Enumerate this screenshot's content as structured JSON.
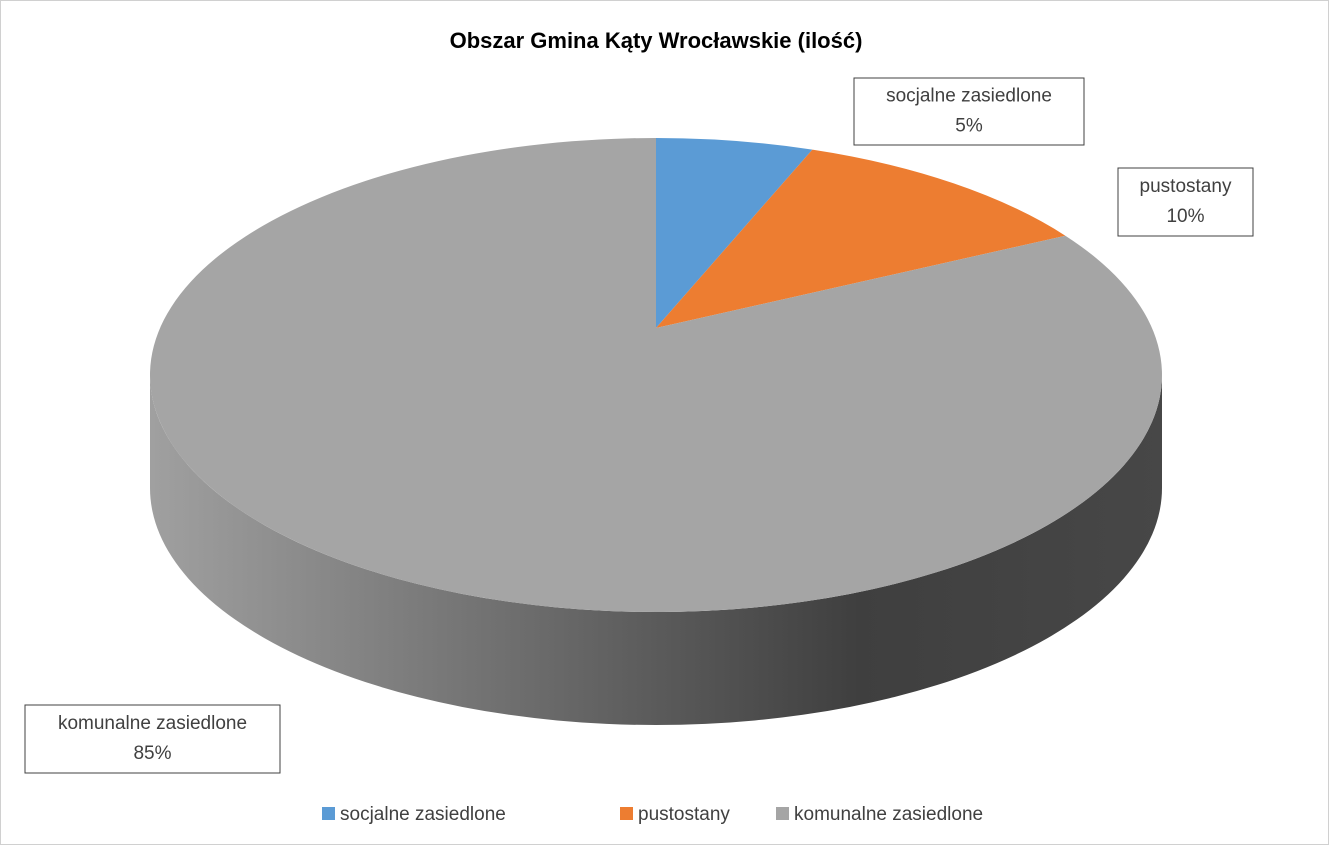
{
  "chart_data": {
    "type": "pie3d",
    "title": "Obszar Gmina Kąty Wrocławskie (ilość)",
    "categories": [
      "socjalne zasiedlone",
      "pustostany",
      "komunalne zasiedlone"
    ],
    "values": [
      5,
      10,
      85
    ],
    "value_labels": [
      "5%",
      "10%",
      "85%"
    ],
    "colors": [
      "#5b9bd5",
      "#ed7d31",
      "#a5a5a5"
    ],
    "legend": "bottom"
  }
}
